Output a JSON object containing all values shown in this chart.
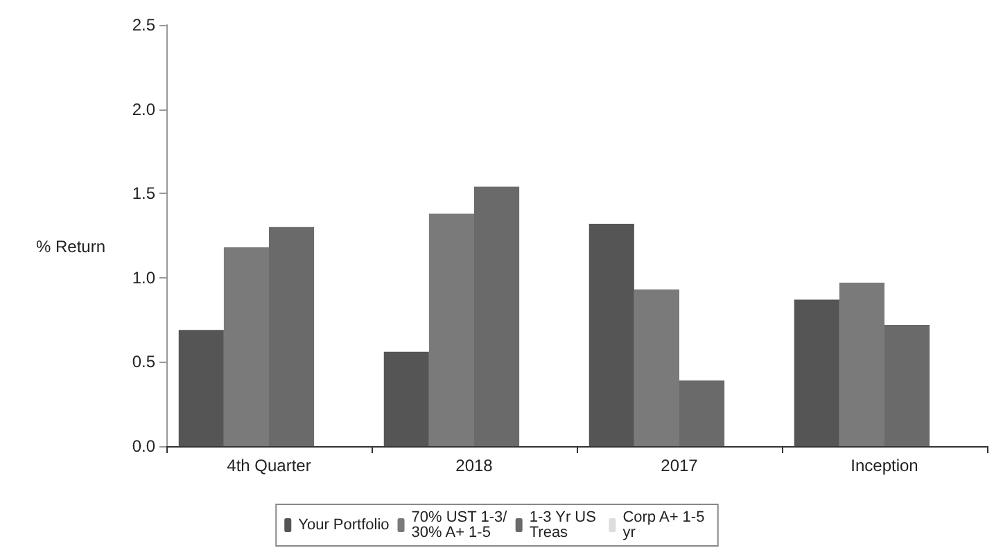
{
  "chart_data": {
    "type": "bar",
    "ylabel": "% Return",
    "categories": [
      "4th Quarter",
      "2018",
      "2017",
      "Inception"
    ],
    "series": [
      {
        "name": "Your Portfolio",
        "color": "#555555",
        "values": [
          0.69,
          0.56,
          1.32,
          0.87
        ]
      },
      {
        "name": "70% UST 1-3/30% A+ 1-5",
        "color": "#7a7a7a",
        "values": [
          1.18,
          1.38,
          0.93,
          0.97
        ]
      },
      {
        "name": "1-3 Yr US Treas",
        "color": "#6a6a6a",
        "values": [
          1.3,
          1.54,
          0.39,
          0.72
        ]
      },
      {
        "name": "Corp A+ 1-5 yr",
        "color": "#dddddd",
        "values": [
          null,
          null,
          null,
          null
        ]
      }
    ],
    "ylim": [
      0,
      2.5
    ],
    "yticks": [
      {
        "value": 0,
        "label": "0.0"
      },
      0.5,
      {
        "value": 1,
        "label": "1.0"
      },
      1.5,
      {
        "value": 2,
        "label": "2.0"
      },
      2.5
    ],
    "grid": false,
    "legend": "bottom"
  }
}
